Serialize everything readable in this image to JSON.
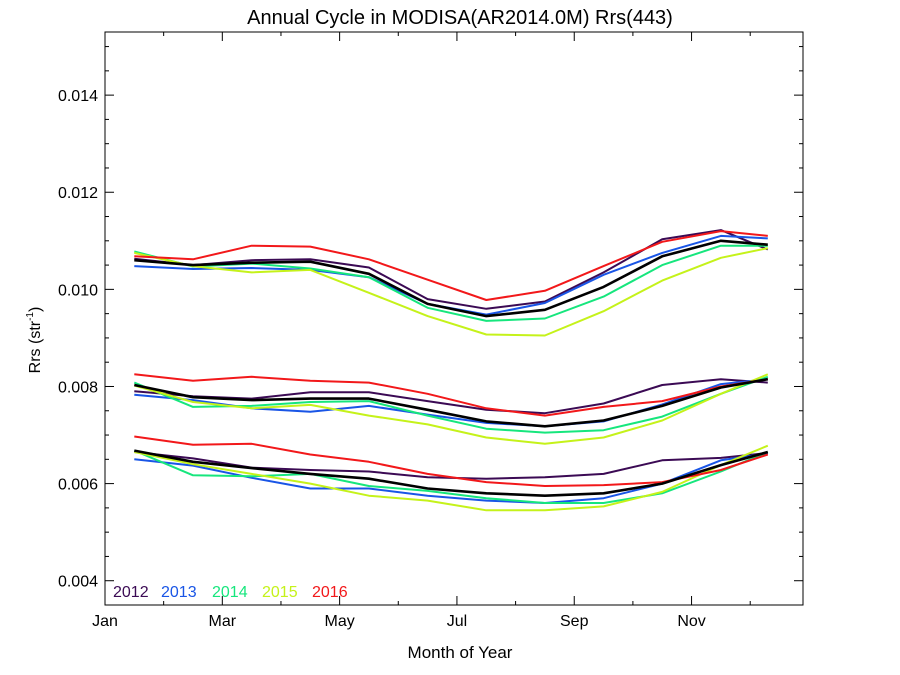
{
  "chart_data": {
    "type": "line",
    "title": "Annual Cycle in MODISA(AR2014.0M) Rrs(443)",
    "xlabel": "Month of Year",
    "ylabel_main": "Rrs (str",
    "ylabel_sup": "-1",
    "ylabel_tail": ")",
    "xlim": [
      1,
      12.9
    ],
    "ylim": [
      0.0035,
      0.0153
    ],
    "x_ticks": [
      {
        "value": 1,
        "label": "Jan"
      },
      {
        "value": 3,
        "label": "Mar"
      },
      {
        "value": 5,
        "label": "May"
      },
      {
        "value": 7,
        "label": "Jul"
      },
      {
        "value": 9,
        "label": "Sep"
      },
      {
        "value": 11,
        "label": "Nov"
      }
    ],
    "y_ticks": [
      {
        "value": 0.004,
        "label": "0.004"
      },
      {
        "value": 0.006,
        "label": "0.006"
      },
      {
        "value": 0.008,
        "label": "0.008"
      },
      {
        "value": 0.01,
        "label": "0.010"
      },
      {
        "value": 0.012,
        "label": "0.012"
      },
      {
        "value": 0.014,
        "label": "0.014"
      }
    ],
    "x": [
      1.5,
      2.5,
      3.5,
      4.5,
      5.5,
      6.5,
      7.5,
      8.5,
      9.5,
      10.5,
      11.5,
      12.3
    ],
    "legend_entries": [
      {
        "label": "2012",
        "color": "#3b0a54"
      },
      {
        "label": "2013",
        "color": "#1955e6"
      },
      {
        "label": "2014",
        "color": "#16e67d"
      },
      {
        "label": "2015",
        "color": "#c5f21a"
      },
      {
        "label": "2016",
        "color": "#f2181a"
      }
    ],
    "series": [
      {
        "group": "upper",
        "year": "2012",
        "color": "#3b0a54",
        "values": [
          0.01063,
          0.0105,
          0.0106,
          0.01062,
          0.01045,
          0.0098,
          0.0096,
          0.00975,
          0.01035,
          0.01103,
          0.01122,
          0.01082
        ]
      },
      {
        "group": "upper",
        "year": "2013",
        "color": "#1955e6",
        "values": [
          0.01048,
          0.01042,
          0.01044,
          0.0104,
          0.01025,
          0.0097,
          0.00948,
          0.00972,
          0.0103,
          0.01075,
          0.0111,
          0.01105
        ]
      },
      {
        "group": "upper",
        "year": "2014",
        "color": "#16e67d",
        "values": [
          0.01078,
          0.01047,
          0.01053,
          0.01043,
          0.01025,
          0.00962,
          0.00935,
          0.0094,
          0.00985,
          0.0105,
          0.0109,
          0.0109
        ]
      },
      {
        "group": "upper",
        "year": "2015",
        "color": "#c5f21a",
        "values": [
          0.01075,
          0.01048,
          0.01035,
          0.0104,
          0.00993,
          0.00945,
          0.00907,
          0.00905,
          0.00955,
          0.01018,
          0.01065,
          0.01085
        ]
      },
      {
        "group": "upper",
        "year": "2016",
        "color": "#f2181a",
        "values": [
          0.01068,
          0.01062,
          0.0109,
          0.01088,
          0.01062,
          0.0102,
          0.00978,
          0.00997,
          0.01048,
          0.01098,
          0.0112,
          0.0111
        ]
      },
      {
        "group": "upper",
        "year": "mean",
        "color": "#000000",
        "values": [
          0.0106,
          0.0105,
          0.01055,
          0.01057,
          0.01032,
          0.0097,
          0.00945,
          0.00958,
          0.01005,
          0.01068,
          0.011,
          0.01092
        ]
      },
      {
        "group": "middle",
        "year": "2012",
        "color": "#3b0a54",
        "values": [
          0.0079,
          0.0078,
          0.00775,
          0.00788,
          0.00788,
          0.0077,
          0.00752,
          0.00745,
          0.00765,
          0.00803,
          0.00815,
          0.00808
        ]
      },
      {
        "group": "middle",
        "year": "2013",
        "color": "#1955e6",
        "values": [
          0.00783,
          0.00772,
          0.00755,
          0.00748,
          0.0076,
          0.00742,
          0.00725,
          0.00718,
          0.00728,
          0.00763,
          0.00805,
          0.00815
        ]
      },
      {
        "group": "middle",
        "year": "2014",
        "color": "#16e67d",
        "values": [
          0.00808,
          0.00758,
          0.0076,
          0.00768,
          0.0077,
          0.0074,
          0.00713,
          0.00705,
          0.0071,
          0.00738,
          0.00785,
          0.0082
        ]
      },
      {
        "group": "middle",
        "year": "2015",
        "color": "#c5f21a",
        "values": [
          0.00802,
          0.00768,
          0.00755,
          0.00762,
          0.0074,
          0.00722,
          0.00695,
          0.00682,
          0.00695,
          0.0073,
          0.00785,
          0.00825
        ]
      },
      {
        "group": "middle",
        "year": "2016",
        "color": "#f2181a",
        "values": [
          0.00825,
          0.00812,
          0.0082,
          0.00812,
          0.00808,
          0.00785,
          0.00755,
          0.0074,
          0.00758,
          0.0077,
          0.008,
          0.00815
        ]
      },
      {
        "group": "middle",
        "year": "mean",
        "color": "#000000",
        "values": [
          0.00803,
          0.00778,
          0.00772,
          0.00775,
          0.00775,
          0.00752,
          0.00728,
          0.00718,
          0.0073,
          0.0076,
          0.00798,
          0.00815
        ]
      },
      {
        "group": "lower",
        "year": "2012",
        "color": "#3b0a54",
        "values": [
          0.00665,
          0.00652,
          0.00633,
          0.00628,
          0.00625,
          0.00613,
          0.0061,
          0.00613,
          0.0062,
          0.00648,
          0.00653,
          0.00663
        ]
      },
      {
        "group": "lower",
        "year": "2013",
        "color": "#1955e6",
        "values": [
          0.0065,
          0.00637,
          0.00612,
          0.0059,
          0.0059,
          0.00575,
          0.00565,
          0.0056,
          0.0057,
          0.006,
          0.00648,
          0.00662
        ]
      },
      {
        "group": "lower",
        "year": "2014",
        "color": "#16e67d",
        "values": [
          0.00668,
          0.00617,
          0.00615,
          0.0062,
          0.00595,
          0.00585,
          0.0057,
          0.0056,
          0.0056,
          0.0058,
          0.00625,
          0.00665
        ]
      },
      {
        "group": "lower",
        "year": "2015",
        "color": "#c5f21a",
        "values": [
          0.00665,
          0.0064,
          0.0062,
          0.006,
          0.00575,
          0.00565,
          0.00545,
          0.00545,
          0.00553,
          0.00583,
          0.00638,
          0.00678
        ]
      },
      {
        "group": "lower",
        "year": "2016",
        "color": "#f2181a",
        "values": [
          0.00697,
          0.0068,
          0.00682,
          0.0066,
          0.00645,
          0.0062,
          0.00603,
          0.00595,
          0.00597,
          0.00603,
          0.00628,
          0.0066
        ]
      },
      {
        "group": "lower",
        "year": "mean",
        "color": "#000000",
        "values": [
          0.00668,
          0.00645,
          0.00632,
          0.0062,
          0.0061,
          0.0059,
          0.0058,
          0.00575,
          0.0058,
          0.006,
          0.00638,
          0.00665
        ]
      }
    ]
  }
}
